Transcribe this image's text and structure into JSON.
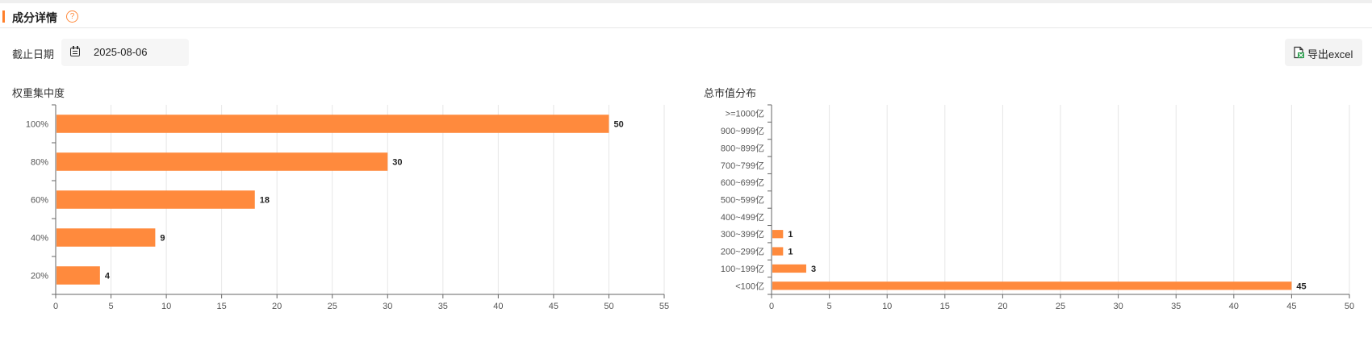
{
  "header": {
    "title": "成分详情",
    "help_icon": "?"
  },
  "toolbar": {
    "date_label": "截止日期",
    "date_value": "2025-08-06",
    "export_label": "导出excel"
  },
  "colors": {
    "accent": "#ff7f2a",
    "bar": "#ff8a3d",
    "grid": "#e6e6e6"
  },
  "chart_data": [
    {
      "type": "bar",
      "orientation": "horizontal",
      "title": "权重集中度",
      "categories": [
        "100%",
        "80%",
        "60%",
        "40%",
        "20%"
      ],
      "values": [
        50,
        30,
        18,
        9,
        4
      ],
      "xlim": [
        0,
        55
      ],
      "xticks": [
        0,
        5,
        10,
        15,
        20,
        25,
        30,
        35,
        40,
        45,
        50,
        55
      ],
      "grid": true,
      "data_labels": true
    },
    {
      "type": "bar",
      "orientation": "horizontal",
      "title": "总市值分布",
      "categories": [
        ">=1000亿",
        "900~999亿",
        "800~899亿",
        "700~799亿",
        "600~699亿",
        "500~599亿",
        "400~499亿",
        "300~399亿",
        "200~299亿",
        "100~199亿",
        "<100亿"
      ],
      "values": [
        0,
        0,
        0,
        0,
        0,
        0,
        0,
        1,
        1,
        3,
        45
      ],
      "xlim": [
        0,
        50
      ],
      "xticks": [
        0,
        5,
        10,
        15,
        20,
        25,
        30,
        35,
        40,
        45,
        50
      ],
      "grid": true,
      "data_labels": true
    }
  ]
}
